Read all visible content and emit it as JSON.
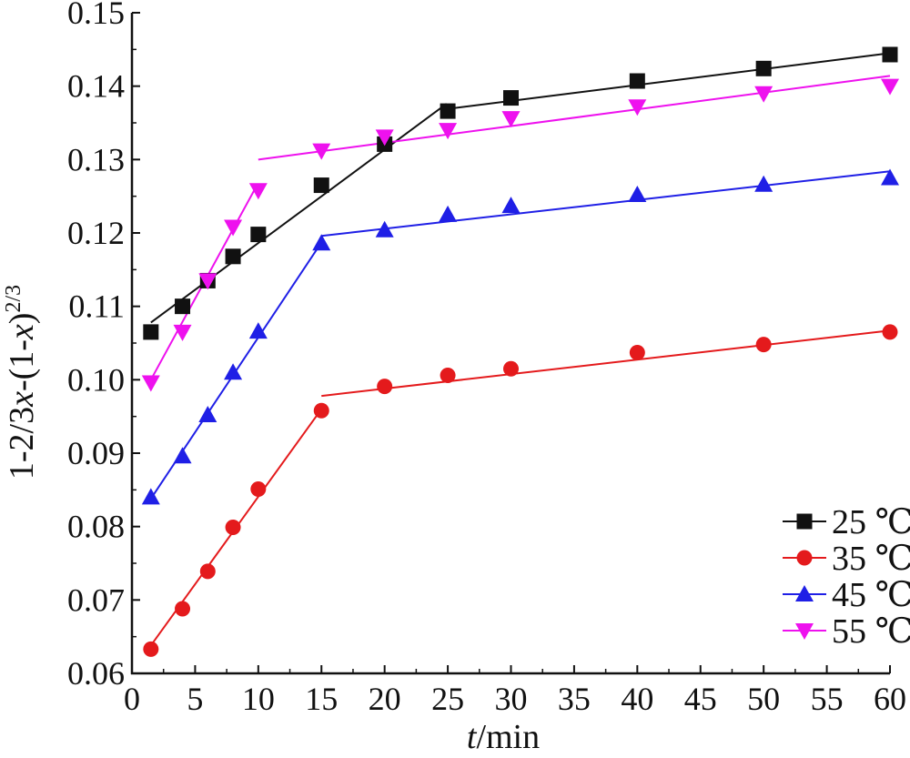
{
  "chart_data": {
    "type": "scatter",
    "xlabel_italic": "t",
    "xlabel_rest": "/min",
    "ylabel_main": "1-2/3",
    "ylabel_x1": "x",
    "ylabel_mid": "-(1-",
    "ylabel_x2": "x",
    "ylabel_close": ")",
    "ylabel_sup": "2/3",
    "xlim": [
      0,
      60
    ],
    "ylim": [
      0.06,
      0.15
    ],
    "xticks": [
      0,
      5,
      10,
      15,
      20,
      25,
      30,
      35,
      40,
      45,
      50,
      55,
      60
    ],
    "xtick_labels": [
      "0",
      "5",
      "10",
      "15",
      "20",
      "25",
      "30",
      "35",
      "40",
      "45",
      "50",
      "55",
      "60"
    ],
    "yticks": [
      0.06,
      0.07,
      0.08,
      0.09,
      0.1,
      0.11,
      0.12,
      0.13,
      0.14,
      0.15
    ],
    "ytick_labels": [
      "0.06",
      "0.07",
      "0.08",
      "0.09",
      "0.10",
      "0.11",
      "0.12",
      "0.13",
      "0.14",
      "0.15"
    ],
    "grid": false,
    "legend_position": "bottom-right",
    "series": [
      {
        "name": "25 ℃",
        "color": "#111111",
        "marker": "square",
        "x": [
          1.5,
          4,
          6,
          8,
          10,
          15,
          20,
          25,
          30,
          40,
          50,
          60
        ],
        "y": [
          0.1065,
          0.11,
          0.1135,
          0.1168,
          0.1198,
          0.1265,
          0.1321,
          0.1366,
          0.1384,
          0.1407,
          0.1424,
          0.1443
        ],
        "fits": [
          {
            "x": [
              1.5,
              24.9
            ],
            "y": [
              0.1078,
              0.1376
            ]
          },
          {
            "x": [
              25,
              60
            ],
            "y": [
              0.1369,
              0.1445
            ]
          }
        ]
      },
      {
        "name": "35 ℃",
        "color": "#e41a1c",
        "marker": "circle",
        "x": [
          1.5,
          4,
          6,
          8,
          10,
          15,
          20,
          25,
          30,
          40,
          50,
          60
        ],
        "y": [
          0.0633,
          0.0688,
          0.0739,
          0.0799,
          0.0851,
          0.0958,
          0.0991,
          0.1006,
          0.1015,
          0.1037,
          0.1048,
          0.1065
        ],
        "fits": [
          {
            "x": [
              1.5,
              15
            ],
            "y": [
              0.0638,
              0.096
            ]
          },
          {
            "x": [
              15,
              60
            ],
            "y": [
              0.0978,
              0.1067
            ]
          }
        ]
      },
      {
        "name": "45 ℃",
        "color": "#1f1fe6",
        "marker": "triangle-up",
        "x": [
          1.5,
          4,
          6,
          8,
          10,
          15,
          20,
          25,
          30,
          40,
          50,
          60
        ],
        "y": [
          0.084,
          0.0896,
          0.0952,
          0.101,
          0.1066,
          0.1186,
          0.1204,
          0.1225,
          0.1237,
          0.1252,
          0.1266,
          0.1275
        ],
        "fits": [
          {
            "x": [
              1.5,
              15
            ],
            "y": [
              0.0838,
              0.1187
            ]
          },
          {
            "x": [
              15,
              60
            ],
            "y": [
              0.1196,
              0.1284
            ]
          }
        ]
      },
      {
        "name": "55 ℃",
        "color": "#ee11ee",
        "marker": "triangle-down",
        "x": [
          1.5,
          4,
          6,
          8,
          10,
          15,
          20,
          25,
          30,
          40,
          50,
          60
        ],
        "y": [
          0.0996,
          0.1065,
          0.1135,
          0.1208,
          0.1258,
          0.1312,
          0.1331,
          0.134,
          0.1356,
          0.1372,
          0.139,
          0.14
        ],
        "fits": [
          {
            "x": [
              1.5,
              9.8
            ],
            "y": [
              0.1,
              0.1262
            ]
          },
          {
            "x": [
              10,
              60
            ],
            "y": [
              0.13,
              0.1414
            ]
          }
        ]
      }
    ]
  }
}
